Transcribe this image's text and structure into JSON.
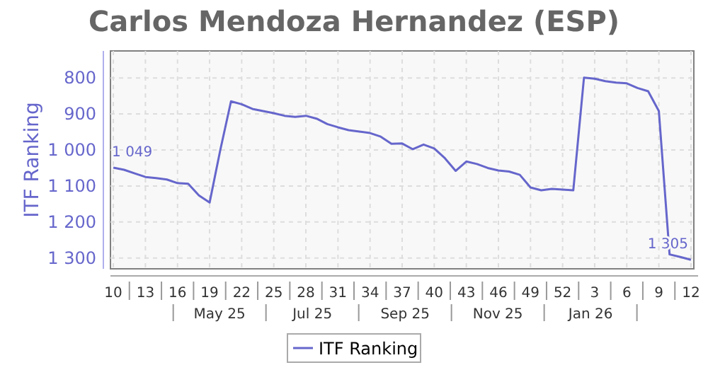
{
  "chart_data": {
    "type": "line",
    "title": "Carlos Mendoza Hernandez (ESP)",
    "ylabel": "ITF Ranking",
    "categories": [
      "10",
      null,
      null,
      "13",
      null,
      null,
      "16",
      null,
      null,
      "19",
      null,
      null,
      "22",
      null,
      null,
      "25",
      null,
      null,
      "28",
      null,
      null,
      "31",
      null,
      null,
      "34",
      null,
      null,
      "37",
      null,
      null,
      "40",
      null,
      null,
      "43",
      null,
      null,
      "46",
      null,
      null,
      "49",
      null,
      null,
      "52",
      null,
      null,
      "3",
      null,
      null,
      "6",
      null,
      null,
      "9",
      null,
      null,
      "12"
    ],
    "series": [
      {
        "name": "ITF Ranking",
        "color": "#6666cc",
        "values": [
          1049,
          1055,
          1065,
          1075,
          1078,
          1082,
          1092,
          1094,
          1126,
          1146,
          1000,
          865,
          873,
          886,
          892,
          898,
          905,
          908,
          905,
          913,
          928,
          937,
          945,
          949,
          953,
          963,
          983,
          982,
          998,
          985,
          996,
          1023,
          1058,
          1032,
          1039,
          1050,
          1057,
          1060,
          1069,
          1104,
          1112,
          1108,
          1110,
          1112,
          799,
          802,
          809,
          813,
          815,
          828,
          837,
          892,
          1290,
          1297,
          1305
        ],
        "value_labels": [
          "1 049",
          null,
          null,
          null,
          null,
          null,
          null,
          null,
          null,
          null,
          null,
          null,
          null,
          null,
          null,
          null,
          null,
          null,
          null,
          null,
          null,
          null,
          null,
          null,
          null,
          null,
          null,
          null,
          null,
          null,
          null,
          null,
          null,
          null,
          null,
          null,
          null,
          null,
          null,
          null,
          null,
          null,
          null,
          null,
          null,
          null,
          null,
          null,
          null,
          null,
          null,
          null,
          null,
          null,
          "1 305"
        ]
      }
    ],
    "ylim": [
      1330,
      725
    ],
    "yticks": [
      800,
      900,
      {
        "value": 1000,
        "label": "1 000"
      },
      {
        "value": 1100,
        "label": "1 100"
      },
      {
        "value": 1200,
        "label": "1 200"
      },
      {
        "value": 1300,
        "label": "1 300"
      }
    ],
    "grid": true,
    "legend": "bottom",
    "annotations": [
      "May 25",
      "Jul 25",
      "Sep 25",
      "Nov 25",
      "Jan 26"
    ]
  }
}
